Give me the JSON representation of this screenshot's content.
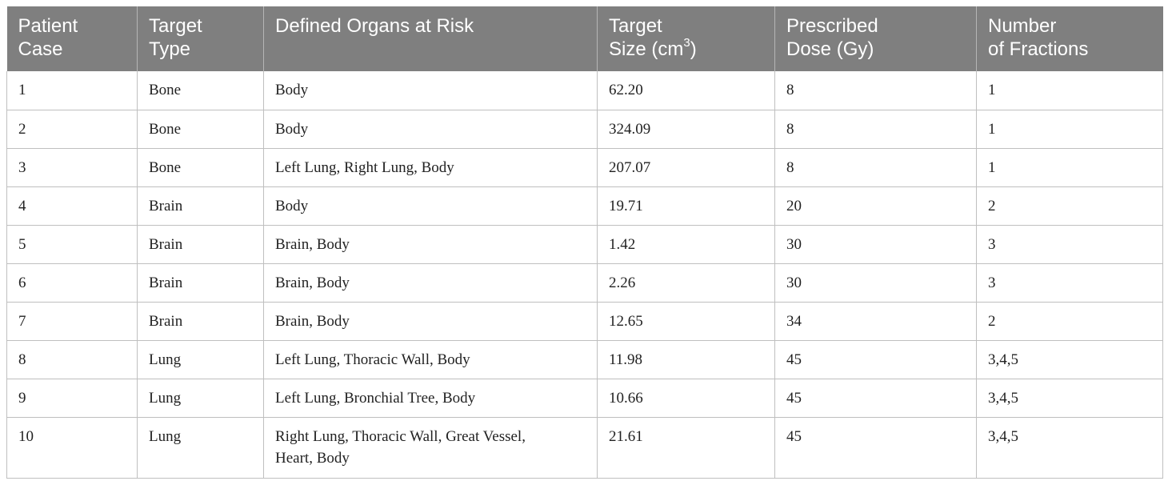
{
  "table": {
    "headers": [
      {
        "line1": "Patient",
        "line2": "Case",
        "sup": ""
      },
      {
        "line1": "Target",
        "line2": "Type",
        "sup": ""
      },
      {
        "line1": "Defined Organs at Risk",
        "line2": "",
        "sup": ""
      },
      {
        "line1": "Target",
        "line2": "Size (cm",
        "sup": "3",
        "after": ")"
      },
      {
        "line1": "Prescribed",
        "line2": "Dose (Gy)",
        "sup": ""
      },
      {
        "line1": "Number",
        "line2": "of Fractions",
        "sup": ""
      }
    ],
    "rows": [
      {
        "case": "1",
        "type": "Bone",
        "organs": "Body",
        "size": "62.20",
        "dose": "8",
        "fractions": "1"
      },
      {
        "case": "2",
        "type": "Bone",
        "organs": "Body",
        "size": "324.09",
        "dose": "8",
        "fractions": "1"
      },
      {
        "case": "3",
        "type": "Bone",
        "organs": "Left Lung, Right Lung, Body",
        "size": "207.07",
        "dose": "8",
        "fractions": "1"
      },
      {
        "case": "4",
        "type": "Brain",
        "organs": "Body",
        "size": "19.71",
        "dose": "20",
        "fractions": "2"
      },
      {
        "case": "5",
        "type": "Brain",
        "organs": "Brain, Body",
        "size": "1.42",
        "dose": "30",
        "fractions": "3"
      },
      {
        "case": "6",
        "type": "Brain",
        "organs": "Brain, Body",
        "size": "2.26",
        "dose": "30",
        "fractions": "3"
      },
      {
        "case": "7",
        "type": "Brain",
        "organs": "Brain, Body",
        "size": "12.65",
        "dose": "34",
        "fractions": "2"
      },
      {
        "case": "8",
        "type": "Lung",
        "organs": "Left Lung, Thoracic Wall, Body",
        "size": "11.98",
        "dose": "45",
        "fractions": "3,4,5"
      },
      {
        "case": "9",
        "type": "Lung",
        "organs": "Left Lung, Bronchial Tree, Body",
        "size": "10.66",
        "dose": "45",
        "fractions": "3,4,5"
      },
      {
        "case": "10",
        "type": "Lung",
        "organs": "Right Lung, Thoracic Wall, Great Vessel,",
        "organs_line2": "Heart, Body",
        "size": "21.61",
        "dose": "45",
        "fractions": "3,4,5"
      }
    ]
  }
}
